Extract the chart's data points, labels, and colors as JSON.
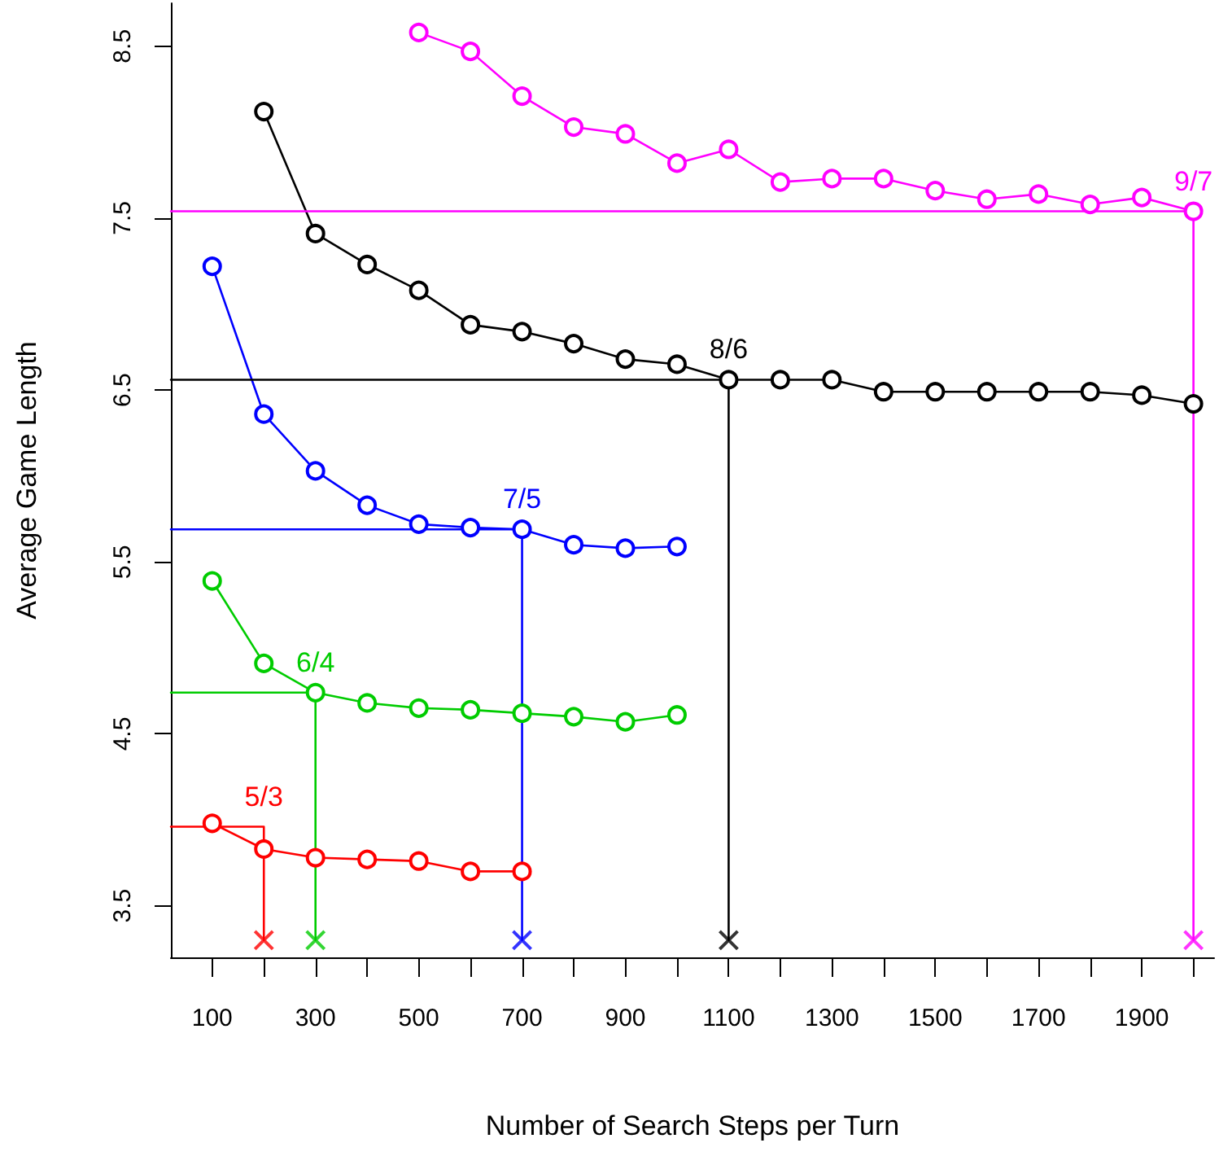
{
  "chart_data": {
    "type": "line",
    "xlabel": "Number of Search Steps per Turn",
    "ylabel": "Average Game Length",
    "xlim": [
      20,
      2040
    ],
    "ylim": [
      3.2,
      8.75
    ],
    "xticks": [
      100,
      {
        "value": 200,
        "label": null
      },
      300,
      {
        "value": 400,
        "label": null
      },
      500,
      {
        "value": 600,
        "label": null
      },
      700,
      {
        "value": 800,
        "label": null
      },
      900,
      {
        "value": 1000,
        "label": null
      },
      1100,
      {
        "value": 1200,
        "label": null
      },
      1300,
      {
        "value": 1400,
        "label": null
      },
      1500,
      {
        "value": 1600,
        "label": null
      },
      1700,
      {
        "value": 1800,
        "label": null
      },
      1900,
      {
        "value": 2000,
        "label": null
      }
    ],
    "yticks": [
      3.5,
      4.5,
      5.5,
      6.5,
      7.5,
      8.5
    ],
    "grid": false,
    "legend": false,
    "marker": "circle",
    "line_style": "solid",
    "series": [
      {
        "color": "#ff00ff",
        "x": [
          500,
          600,
          700,
          800,
          900,
          1000,
          1100,
          1200,
          1300,
          1400,
          1500,
          1600,
          1700,
          1800,
          1900,
          2000
        ],
        "values": [
          8.58,
          8.47,
          8.21,
          8.03,
          7.99,
          7.82,
          7.9,
          7.71,
          7.73,
          7.73,
          7.66,
          7.61,
          7.64,
          7.58,
          7.62,
          7.54
        ]
      },
      {
        "color": "#000000",
        "x": [
          200,
          300,
          400,
          500,
          600,
          700,
          800,
          900,
          1000,
          1100,
          1200,
          1300,
          1400,
          1500,
          1600,
          1700,
          1800,
          1900,
          2000
        ],
        "values": [
          8.12,
          7.41,
          7.23,
          7.08,
          6.88,
          6.84,
          6.77,
          6.68,
          6.65,
          6.56,
          6.56,
          6.56,
          6.49,
          6.49,
          6.49,
          6.49,
          6.49,
          6.47,
          6.42
        ]
      },
      {
        "color": "#0000ff",
        "x": [
          100,
          200,
          300,
          400,
          500,
          600,
          700,
          800,
          900,
          1000
        ],
        "values": [
          7.22,
          6.36,
          6.03,
          5.83,
          5.72,
          5.7,
          5.69,
          5.6,
          5.58,
          5.59
        ]
      },
      {
        "color": "#00cc00",
        "x": [
          100,
          200,
          300,
          400,
          500,
          600,
          700,
          800,
          900,
          1000
        ],
        "values": [
          5.39,
          4.91,
          4.74,
          4.68,
          4.65,
          4.64,
          4.62,
          4.6,
          4.57,
          4.61
        ]
      },
      {
        "color": "#ff0000",
        "x": [
          100,
          200,
          300,
          400,
          500,
          600,
          700
        ],
        "values": [
          3.98,
          3.83,
          3.78,
          3.77,
          3.76,
          3.7,
          3.7
        ]
      },
      {
        "name": "9/7",
        "color": "#ff00ff",
        "marker": "none",
        "x": [
          20,
          2000,
          2000
        ],
        "values": [
          7.54,
          7.54,
          3.3
        ]
      },
      {
        "name": "8/6",
        "color": "#000000",
        "marker": "none",
        "x": [
          20,
          1100,
          1100
        ],
        "values": [
          6.56,
          6.56,
          3.3
        ]
      },
      {
        "name": "7/5",
        "color": "#0000ff",
        "marker": "none",
        "x": [
          20,
          700,
          700
        ],
        "values": [
          5.69,
          5.69,
          3.3
        ]
      },
      {
        "name": "6/4",
        "color": "#00cc00",
        "marker": "none",
        "x": [
          20,
          300,
          300
        ],
        "values": [
          4.74,
          4.74,
          3.3
        ]
      },
      {
        "name": "5/3",
        "color": "#ff0000",
        "marker": "none",
        "x": [
          20,
          200,
          200
        ],
        "values": [
          3.96,
          3.96,
          3.3
        ]
      },
      {
        "type": "scatter",
        "marker": "cross",
        "x": [
          200,
          300,
          700,
          1100,
          2000
        ],
        "values": [
          3.3,
          3.3,
          3.3,
          3.3,
          3.3
        ],
        "colors": [
          "#ff0000",
          "#00cc00",
          "#0000ff",
          "#000000",
          "#ff00ff"
        ]
      }
    ]
  }
}
